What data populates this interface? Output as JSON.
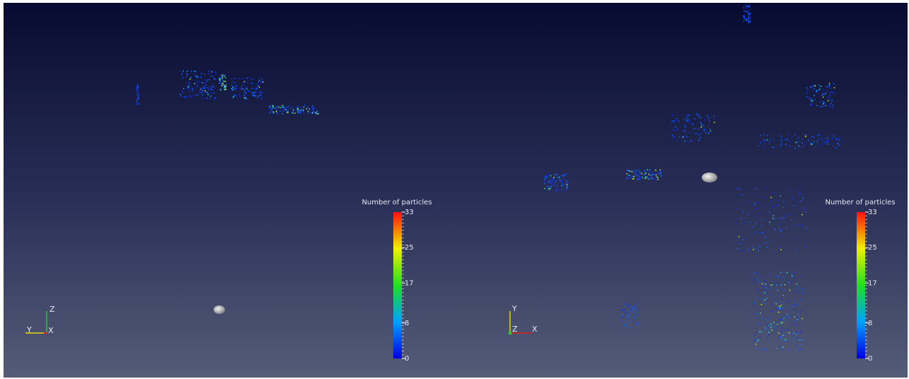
{
  "views": [
    {
      "color_bar": {
        "title": "Number of particles",
        "ticks": [
          33,
          25,
          17,
          8,
          0
        ]
      },
      "axes": {
        "z": "Z",
        "y": "Y",
        "x": "X"
      }
    },
    {
      "color_bar": {
        "title": "Number of particles",
        "ticks": [
          33,
          25,
          17,
          8,
          0
        ]
      },
      "axes": {
        "y": "Y",
        "z": "Z",
        "x": "X"
      }
    }
  ]
}
